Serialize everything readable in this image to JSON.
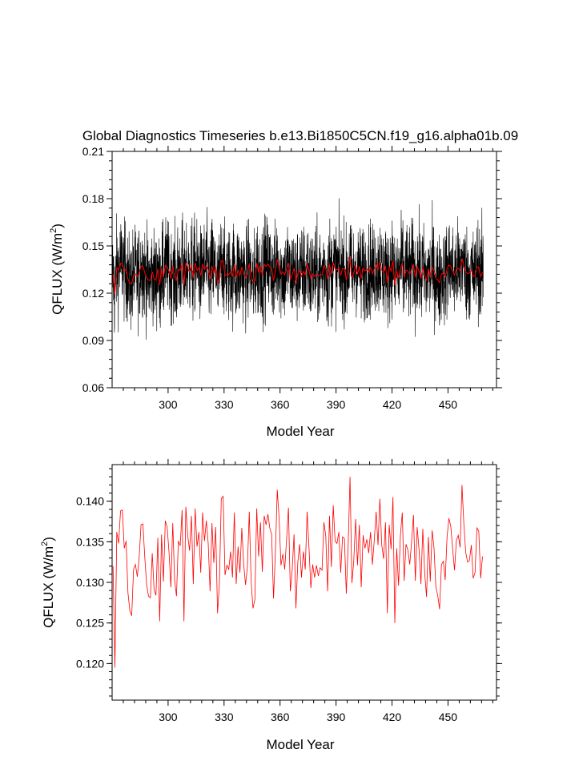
{
  "figure": {
    "title": "Global Diagnostics Timeseries b.e13.Bi1850C5CN.f19_g16.alpha01b.09"
  },
  "chart_data": [
    {
      "type": "line",
      "xlabel": "Model Year",
      "ylabel_main": "QFLUX (W/m",
      "ylabel_sup": "2",
      "ylabel_close": ")",
      "xlim": [
        270,
        476
      ],
      "ylim": [
        0.06,
        0.21
      ],
      "xticks": [
        300,
        330,
        360,
        390,
        420,
        450
      ],
      "yticks": [
        0.06,
        0.09,
        0.12,
        0.15,
        0.18,
        0.21
      ],
      "ytick_labels": [
        "0.06",
        "0.09",
        "0.12",
        "0.15",
        "0.18",
        "0.21"
      ],
      "series": [
        {
          "color": "#000000",
          "kind": "monthly",
          "mean": 0.132,
          "peak_max": 0.206,
          "peak_min": 0.067,
          "values": []
        },
        {
          "color": "#ff0000",
          "kind": "annual",
          "source": "annual_mean"
        }
      ]
    },
    {
      "type": "line",
      "xlabel": "Model Year",
      "ylabel_main": "QFLUX (W/m",
      "ylabel_sup": "2",
      "ylabel_close": ")",
      "xlim": [
        270,
        476
      ],
      "ylim": [
        0.1155,
        0.1445
      ],
      "xticks": [
        300,
        330,
        360,
        390,
        420,
        450
      ],
      "yticks": [
        0.12,
        0.125,
        0.13,
        0.135,
        0.14
      ],
      "ytick_labels": [
        "0.120",
        "0.125",
        "0.130",
        "0.135",
        "0.140"
      ],
      "series": [
        {
          "color": "#ff0000",
          "kind": "annual",
          "source": "annual_mean"
        }
      ]
    }
  ],
  "annual_mean": {
    "x_start": 270,
    "values": [
      0.132,
      0.1195,
      0.1362,
      0.1348,
      0.1388,
      0.1389,
      0.1342,
      0.1351,
      0.1287,
      0.1265,
      0.1259,
      0.1316,
      0.1322,
      0.1307,
      0.1331,
      0.1371,
      0.1372,
      0.1331,
      0.1297,
      0.1283,
      0.1281,
      0.1336,
      0.1291,
      0.1284,
      0.1355,
      0.1252,
      0.1359,
      0.1301,
      0.1376,
      0.1368,
      0.1337,
      0.1294,
      0.1373,
      0.1302,
      0.1283,
      0.1351,
      0.1345,
      0.1389,
      0.1252,
      0.1393,
      0.1358,
      0.1339,
      0.1382,
      0.1298,
      0.1391,
      0.1344,
      0.1362,
      0.1312,
      0.1386,
      0.1351,
      0.1376,
      0.1348,
      0.1289,
      0.1373,
      0.1324,
      0.1368,
      0.1262,
      0.1298,
      0.1403,
      0.1406,
      0.1309,
      0.1321,
      0.1316,
      0.1338,
      0.1306,
      0.1386,
      0.1298,
      0.1344,
      0.1312,
      0.1367,
      0.1323,
      0.1297,
      0.1319,
      0.1387,
      0.1301,
      0.1268,
      0.1279,
      0.1391,
      0.1332,
      0.1374,
      0.1313,
      0.1382,
      0.1371,
      0.1384,
      0.1367,
      0.1359,
      0.128,
      0.1336,
      0.1414,
      0.1379,
      0.1321,
      0.1335,
      0.1316,
      0.1353,
      0.1392,
      0.1289,
      0.1315,
      0.1359,
      0.1268,
      0.1324,
      0.1347,
      0.1306,
      0.1338,
      0.1316,
      0.1387,
      0.1343,
      0.1293,
      0.1322,
      0.1306,
      0.1321,
      0.1308,
      0.1318,
      0.1315,
      0.1374,
      0.1357,
      0.1289,
      0.1382,
      0.1319,
      0.1395,
      0.1351,
      0.1348,
      0.1362,
      0.1312,
      0.1356,
      0.1354,
      0.1286,
      0.1346,
      0.143,
      0.1299,
      0.1326,
      0.1378,
      0.1321,
      0.1371,
      0.1294,
      0.1358,
      0.1342,
      0.1353,
      0.1336,
      0.1362,
      0.1322,
      0.1352,
      0.1387,
      0.1346,
      0.1403,
      0.1346,
      0.1329,
      0.1374,
      0.1262,
      0.1371,
      0.1341,
      0.1405,
      0.125,
      0.1342,
      0.1296,
      0.1358,
      0.1386,
      0.1302,
      0.1347,
      0.134,
      0.1322,
      0.135,
      0.1383,
      0.1302,
      0.1368,
      0.134,
      0.1298,
      0.1366,
      0.1312,
      0.1282,
      0.1356,
      0.1301,
      0.1364,
      0.1343,
      0.1294,
      0.1284,
      0.1267,
      0.1322,
      0.1326,
      0.1303,
      0.1356,
      0.1379,
      0.1369,
      0.1341,
      0.1315,
      0.1352,
      0.1358,
      0.1343,
      0.142,
      0.1372,
      0.1337,
      0.1325,
      0.1327,
      0.1346,
      0.1305,
      0.1312,
      0.1367,
      0.1363,
      0.1305,
      0.1332
    ]
  }
}
